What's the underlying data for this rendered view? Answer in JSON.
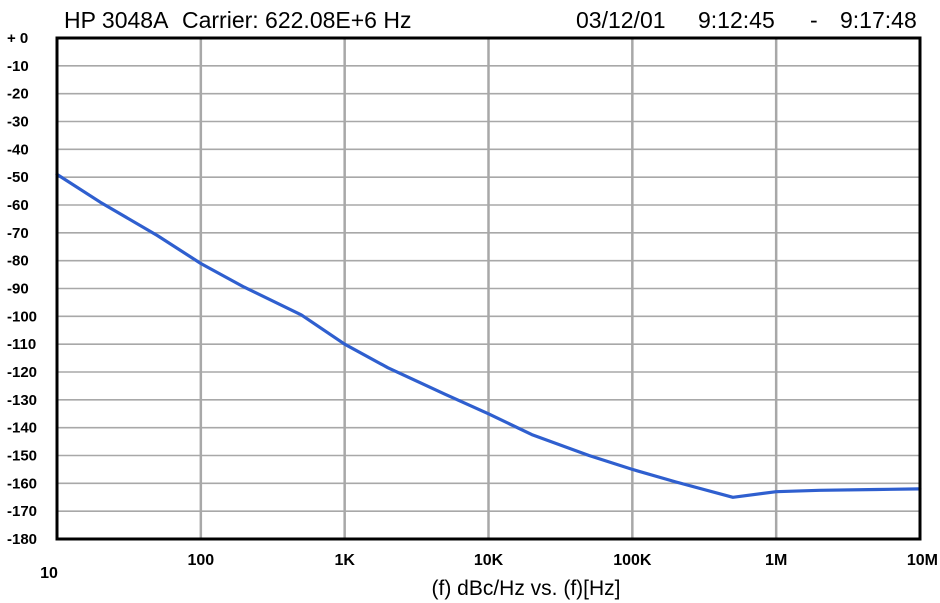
{
  "header": {
    "instrument": "HP 3048A",
    "carrier": "Carrier: 622.08E+6 Hz",
    "date": "03/12/01",
    "time_start": "9:12:45",
    "separator": "-",
    "time_end": "9:17:48"
  },
  "colors": {
    "line": "#2f5fcf",
    "grid": "#a8a8a8",
    "frame": "#000000"
  },
  "chart_data": {
    "type": "line",
    "title": "",
    "xlabel": "(f) dBc/Hz vs. (f)[Hz]",
    "ylabel": "",
    "x_scale": "log",
    "xlim": [
      10,
      10000000
    ],
    "ylim": [
      -180,
      0
    ],
    "grid": true,
    "x_ticks": [
      {
        "value": 10,
        "label": "10"
      },
      {
        "value": 100,
        "label": "100"
      },
      {
        "value": 1000,
        "label": "1K"
      },
      {
        "value": 10000,
        "label": "10K"
      },
      {
        "value": 100000,
        "label": "100K"
      },
      {
        "value": 1000000,
        "label": "1M"
      },
      {
        "value": 10000000,
        "label": "10M"
      }
    ],
    "y_ticks": [
      {
        "value": 0,
        "label": "+ 0"
      },
      {
        "value": -10,
        "label": "-10"
      },
      {
        "value": -20,
        "label": "-20"
      },
      {
        "value": -30,
        "label": "-30"
      },
      {
        "value": -40,
        "label": "-40"
      },
      {
        "value": -50,
        "label": "-50"
      },
      {
        "value": -60,
        "label": "-60"
      },
      {
        "value": -70,
        "label": "-70"
      },
      {
        "value": -80,
        "label": "-80"
      },
      {
        "value": -90,
        "label": "-90"
      },
      {
        "value": -100,
        "label": "-100"
      },
      {
        "value": -110,
        "label": "-110"
      },
      {
        "value": -120,
        "label": "-120"
      },
      {
        "value": -130,
        "label": "-130"
      },
      {
        "value": -140,
        "label": "-140"
      },
      {
        "value": -150,
        "label": "-150"
      },
      {
        "value": -160,
        "label": "-160"
      },
      {
        "value": -170,
        "label": "-170"
      },
      {
        "value": -180,
        "label": "-180"
      }
    ],
    "series": [
      {
        "x": [
          10,
          20,
          50,
          100,
          200,
          500,
          1000,
          2000,
          5000,
          10000,
          20000,
          50000,
          100000,
          200000,
          500000,
          1000000,
          2000000,
          5000000,
          10000000
        ],
        "y": [
          -49,
          -59,
          -71,
          -81,
          -89.5,
          -99.5,
          -110,
          -118.5,
          -128,
          -135,
          -142.5,
          -150,
          -155,
          -159.5,
          -165,
          -163,
          -162.5,
          -162.2,
          -162
        ]
      }
    ]
  }
}
